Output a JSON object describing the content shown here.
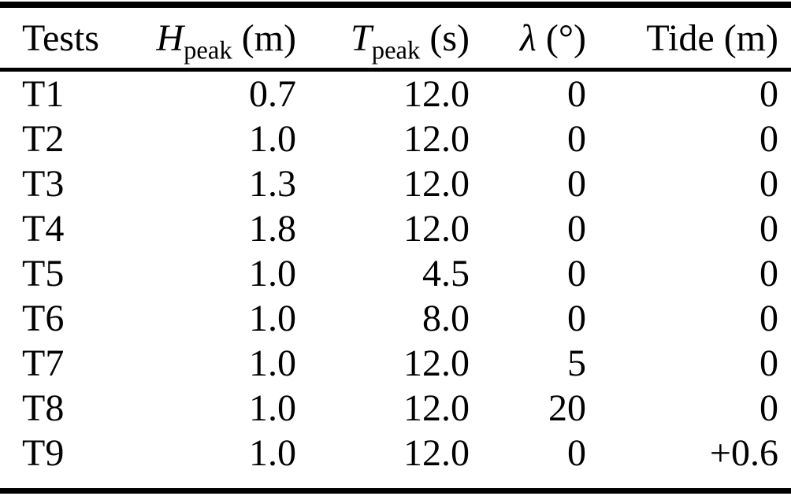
{
  "colors": {
    "text": "#000000",
    "background": "#ffffff",
    "rule": "#000000"
  },
  "table": {
    "headers": [
      {
        "label": "Tests",
        "unit": ""
      },
      {
        "symbol": "H",
        "sub": "peak",
        "unit": "(m)"
      },
      {
        "symbol": "T",
        "sub": "peak",
        "unit": "(s)"
      },
      {
        "symbol": "λ",
        "sub": "",
        "unit": "(°)"
      },
      {
        "label": "Tide",
        "unit": "(m)"
      }
    ],
    "rows": [
      [
        "T1",
        "0.7",
        "12.0",
        "0",
        "0"
      ],
      [
        "T2",
        "1.0",
        "12.0",
        "0",
        "0"
      ],
      [
        "T3",
        "1.3",
        "12.0",
        "0",
        "0"
      ],
      [
        "T4",
        "1.8",
        "12.0",
        "0",
        "0"
      ],
      [
        "T5",
        "1.0",
        "4.5",
        "0",
        "0"
      ],
      [
        "T6",
        "1.0",
        "8.0",
        "0",
        "0"
      ],
      [
        "T7",
        "1.0",
        "12.0",
        "5",
        "0"
      ],
      [
        "T8",
        "1.0",
        "12.0",
        "20",
        "0"
      ],
      [
        "T9",
        "1.0",
        "12.0",
        "0",
        "+0.6"
      ]
    ]
  },
  "chart_data": {
    "type": "table",
    "title": "",
    "columns": [
      "Tests",
      "H_peak (m)",
      "T_peak (s)",
      "lambda (deg)",
      "Tide (m)"
    ],
    "rows": [
      [
        "T1",
        0.7,
        12.0,
        0,
        0
      ],
      [
        "T2",
        1.0,
        12.0,
        0,
        0
      ],
      [
        "T3",
        1.3,
        12.0,
        0,
        0
      ],
      [
        "T4",
        1.8,
        12.0,
        0,
        0
      ],
      [
        "T5",
        1.0,
        4.5,
        0,
        0
      ],
      [
        "T6",
        1.0,
        8.0,
        0,
        0
      ],
      [
        "T7",
        1.0,
        12.0,
        5,
        0
      ],
      [
        "T8",
        1.0,
        12.0,
        20,
        0
      ],
      [
        "T9",
        1.0,
        12.0,
        0,
        0.6
      ]
    ]
  }
}
